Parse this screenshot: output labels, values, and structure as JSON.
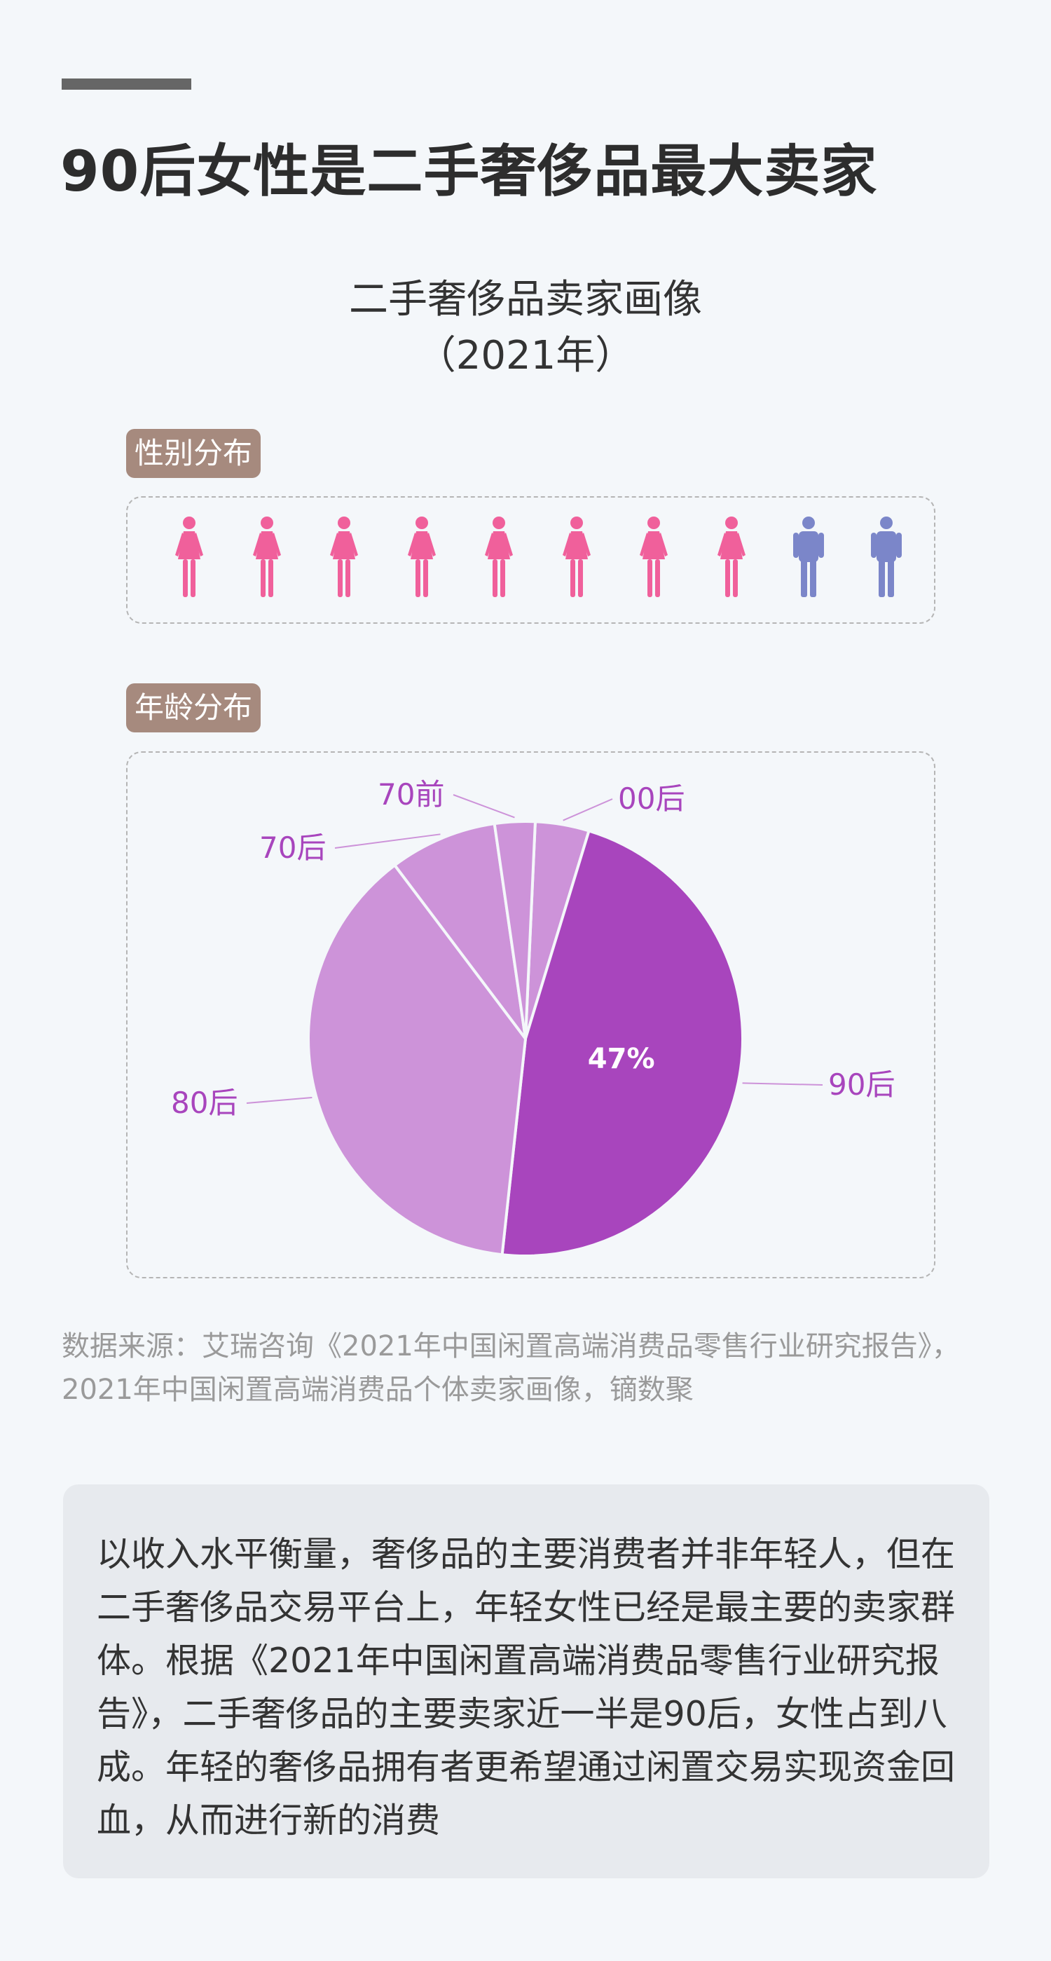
{
  "headline": "90后女性是二手奢侈品最大卖家",
  "chart_title_line1": "二手奢侈品卖家画像",
  "chart_title_line2": "（2021年）",
  "gender_tag": "性别分布",
  "age_tag": "年龄分布",
  "colors": {
    "female": "#f0609b",
    "male": "#7b86c9",
    "highlight_slice": "#a845bd",
    "other_slice": "#cd93d9",
    "label": "#a845bd",
    "tag": "#a68a7e"
  },
  "gender_chart": {
    "female_icons": 8,
    "male_icons": 2,
    "female_icon": "female-person-icon",
    "male_icon": "male-person-icon"
  },
  "chart_data": {
    "type": "pie",
    "title": "二手奢侈品卖家画像（2021年）",
    "categories": [
      "00后",
      "90后",
      "80后",
      "70后",
      "70前"
    ],
    "values": [
      4,
      47,
      38,
      8,
      3
    ],
    "highlight": "90后",
    "data_labels": [
      {
        "category": "90后",
        "text": "47%"
      }
    ]
  },
  "source": "数据来源：艾瑞咨询《2021年中国闲置高端消费品零售行业研究报告》，2021年中国闲置高端消费品个体卖家画像，镝数聚",
  "note": "以收入水平衡量，奢侈品的主要消费者并非年轻人，但在二手奢侈品交易平台上，年轻女性已经是最主要的卖家群体。根据《2021年中国闲置高端消费品零售行业研究报告》，二手奢侈品的主要卖家近一半是90后，女性占到八成。年轻的奢侈品拥有者更希望通过闲置交易实现资金回血，从而进行新的消费"
}
